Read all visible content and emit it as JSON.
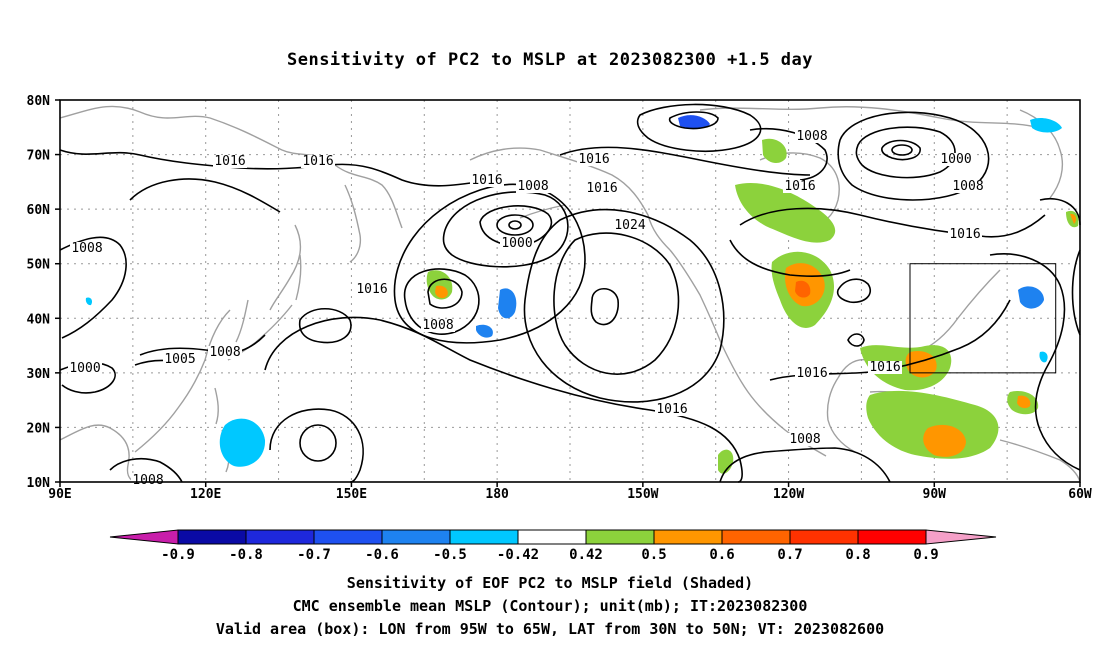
{
  "title": "Sensitivity of PC2 to MSLP at 2023082300 +1.5 day",
  "axes": {
    "lat_labels": [
      "80N",
      "70N",
      "60N",
      "50N",
      "40N",
      "30N",
      "20N",
      "10N"
    ],
    "lon_labels": [
      "90E",
      "120E",
      "150E",
      "180",
      "150W",
      "120W",
      "90W",
      "60W"
    ]
  },
  "contour_labels": [
    "1016",
    "1016",
    "1016",
    "1016",
    "1016",
    "1016",
    "1016",
    "1016",
    "1016",
    "1016",
    "1016",
    "1008",
    "1008",
    "1008",
    "1008",
    "1008",
    "1008",
    "1008",
    "1000",
    "1000",
    "1000",
    "1024",
    "1005",
    "1008"
  ],
  "colorbar": {
    "ticks": [
      "-0.9",
      "-0.8",
      "-0.7",
      "-0.6",
      "-0.5",
      "-0.42",
      "0.42",
      "0.5",
      "0.6",
      "0.7",
      "0.8",
      "0.9"
    ],
    "colors": [
      "#0a0aa5",
      "#1e28dc",
      "#1e50f0",
      "#1e82f0",
      "#00c8ff",
      "#ffffff",
      "#8cd23c",
      "#ff9600",
      "#ff6400",
      "#ff3200",
      "#ff0000"
    ],
    "low_end_color": "#c81eaa",
    "high_end_color": "#f5a0c8"
  },
  "captions": [
    "Sensitivity of EOF PC2 to MSLP field (Shaded)",
    "CMC ensemble mean MSLP (Contour); unit(mb); IT:2023082300",
    "Valid area (box): LON from 95W to 65W, LAT from 30N to 50N; VT: 2023082600"
  ],
  "valid_area": {
    "lon_min": -95,
    "lon_max": -65,
    "lat_min": 30,
    "lat_max": 50
  }
}
